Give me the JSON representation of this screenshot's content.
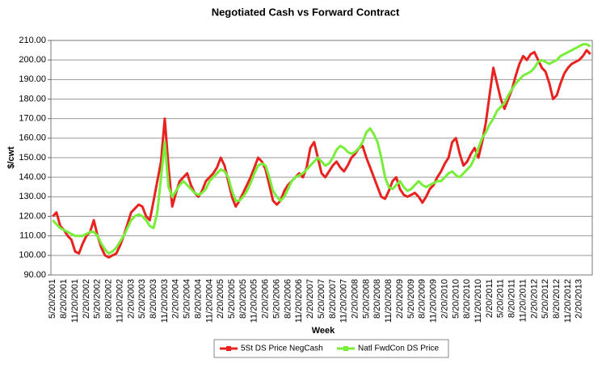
{
  "chart_data": {
    "type": "line",
    "title": "Negotiated Cash vs Forward Contract",
    "x_label": "Week",
    "y_label": "$/cwt",
    "grid": true,
    "ylim": [
      90,
      210
    ],
    "yticks": [
      {
        "value": 90,
        "label": "90.00"
      },
      {
        "value": 100,
        "label": "100.00"
      },
      {
        "value": 110,
        "label": "110.00"
      },
      {
        "value": 120,
        "label": "120.00"
      },
      {
        "value": 130,
        "label": "130.00"
      },
      {
        "value": 140,
        "label": "140.00"
      },
      {
        "value": 150,
        "label": "150.00"
      },
      {
        "value": 160,
        "label": "160.00"
      },
      {
        "value": 170,
        "label": "170.00"
      },
      {
        "value": 180,
        "label": "180.00"
      },
      {
        "value": 190,
        "label": "190.00"
      },
      {
        "value": 200,
        "label": "200.00"
      },
      {
        "value": 210,
        "label": "210.00"
      }
    ],
    "categories": [
      "5/20/2001",
      null,
      null,
      "8/20/2001",
      null,
      null,
      "11/20/2001",
      null,
      null,
      "2/20/2002",
      null,
      null,
      "5/20/2002",
      null,
      null,
      "8/20/2002",
      null,
      null,
      "11/20/2002",
      null,
      null,
      "2/20/2003",
      null,
      null,
      "5/20/2003",
      null,
      null,
      "8/20/2003",
      null,
      null,
      "11/20/2003",
      null,
      null,
      "2/20/2004",
      null,
      null,
      "5/20/2004",
      null,
      null,
      "8/20/2004",
      null,
      null,
      "11/20/2004",
      null,
      null,
      "2/20/2005",
      null,
      null,
      "5/20/2005",
      null,
      null,
      "8/20/2005",
      null,
      null,
      "11/20/2005",
      null,
      null,
      "2/20/2006",
      null,
      null,
      "5/20/2006",
      null,
      null,
      "8/20/2006",
      null,
      null,
      "11/20/2006",
      null,
      null,
      "2/20/2007",
      null,
      null,
      "5/20/2007",
      null,
      null,
      "8/20/2007",
      null,
      null,
      "11/20/2007",
      null,
      null,
      "2/20/2008",
      null,
      null,
      "5/20/2008",
      null,
      null,
      "8/20/2008",
      null,
      null,
      "11/20/2008",
      null,
      null,
      "2/20/2009",
      null,
      null,
      "5/20/2009",
      null,
      null,
      "8/20/2009",
      null,
      null,
      "11/20/2009",
      null,
      null,
      "2/20/2010",
      null,
      null,
      "5/20/2010",
      null,
      null,
      "8/20/2010",
      null,
      null,
      "11/20/2010",
      null,
      null,
      "2/20/2011",
      null,
      null,
      "5/20/2011",
      null,
      null,
      "8/20/2011",
      null,
      null,
      "11/20/2011",
      null,
      null,
      "2/20/2012",
      null,
      null,
      "5/20/2012",
      null,
      null,
      "8/20/2012",
      null,
      null,
      "11/20/2012",
      null,
      null,
      "2/20/2013",
      null,
      null,
      null
    ],
    "series": [
      {
        "name": "5St DS Price NegCash",
        "color": "#e8231f",
        "values": [
          120,
          122,
          115,
          113,
          110,
          108,
          102,
          101,
          106,
          110,
          112,
          118,
          110,
          104,
          100,
          99,
          100,
          101,
          105,
          110,
          116,
          122,
          124,
          126,
          125,
          120,
          118,
          128,
          138,
          148,
          170,
          145,
          125,
          132,
          138,
          140,
          142,
          136,
          132,
          130,
          133,
          138,
          140,
          142,
          145,
          150,
          146,
          138,
          130,
          125,
          128,
          132,
          136,
          140,
          145,
          150,
          148,
          144,
          136,
          128,
          126,
          128,
          133,
          136,
          138,
          140,
          142,
          140,
          145,
          155,
          158,
          150,
          142,
          140,
          143,
          146,
          148,
          145,
          143,
          146,
          150,
          152,
          155,
          156,
          150,
          145,
          140,
          135,
          130,
          129,
          133,
          138,
          140,
          134,
          131,
          130,
          131,
          132,
          130,
          127,
          130,
          134,
          136,
          140,
          143,
          147,
          150,
          158,
          160,
          152,
          146,
          148,
          152,
          155,
          150,
          158,
          168,
          182,
          196,
          188,
          180,
          175,
          180,
          185,
          192,
          198,
          202,
          200,
          203,
          204,
          200,
          196,
          194,
          188,
          180,
          182,
          188,
          193,
          196,
          198,
          199,
          200,
          202,
          205,
          203
        ]
      },
      {
        "name": "Natl FwdCon DS Price",
        "color": "#77ee3a",
        "values": [
          118,
          116,
          114,
          113,
          112,
          111,
          110,
          110,
          110,
          111,
          112,
          112,
          110,
          106,
          103,
          101,
          102,
          104,
          107,
          110,
          114,
          118,
          120,
          121,
          120,
          118,
          115,
          114,
          122,
          140,
          158,
          135,
          130,
          133,
          136,
          138,
          136,
          134,
          132,
          131,
          132,
          134,
          138,
          140,
          142,
          144,
          143,
          140,
          133,
          128,
          128,
          130,
          133,
          137,
          142,
          146,
          147,
          146,
          140,
          133,
          130,
          128,
          130,
          134,
          138,
          140,
          141,
          142,
          144,
          146,
          148,
          150,
          148,
          146,
          147,
          150,
          154,
          156,
          155,
          153,
          152,
          153,
          155,
          158,
          163,
          165,
          162,
          158,
          150,
          140,
          135,
          134,
          136,
          138,
          135,
          133,
          134,
          136,
          138,
          136,
          135,
          136,
          137,
          138,
          138,
          140,
          142,
          143,
          141,
          140,
          142,
          144,
          146,
          150,
          155,
          160,
          163,
          167,
          170,
          174,
          176,
          178,
          182,
          185,
          188,
          190,
          192,
          193,
          194,
          196,
          199,
          200,
          199,
          198,
          199,
          200,
          202,
          203,
          204,
          205,
          206,
          207,
          208,
          208,
          207
        ]
      }
    ]
  }
}
